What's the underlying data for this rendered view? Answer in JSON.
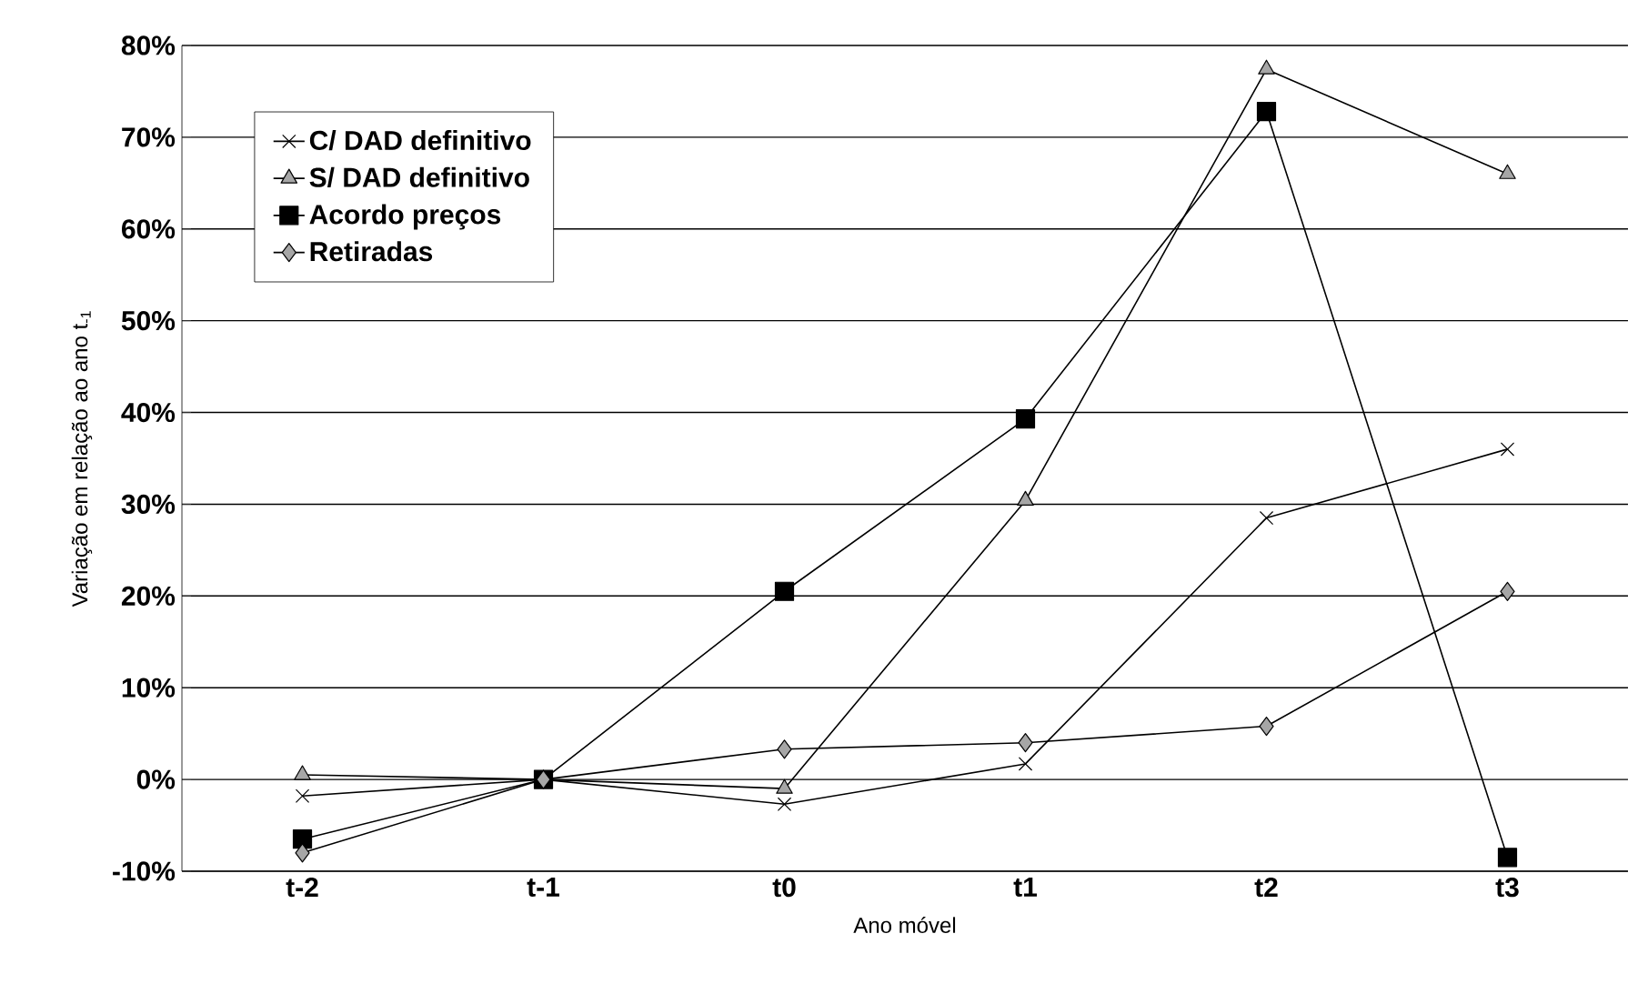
{
  "chart_data": {
    "type": "line",
    "xlabel": "Ano móvel",
    "ylabel": "Variação em relação ao ano t$_{-1}$",
    "categories": [
      "t-2",
      "t-1",
      "t0",
      "t1",
      "t2",
      "t3"
    ],
    "series": [
      {
        "name": "C/ DAD definitivo",
        "color": "#000000",
        "marker": "cross",
        "values": [
          -1.8,
          0,
          -2.7,
          1.7,
          28.5,
          36
        ]
      },
      {
        "name": "S/ DAD definitivo",
        "color": "#a6a6a6",
        "marker": "triangle",
        "values": [
          0.5,
          0,
          -1,
          30.4,
          77.4,
          66
        ]
      },
      {
        "name": "Acordo preços",
        "color": "#000000",
        "marker": "square",
        "values": [
          -6.5,
          0,
          20.5,
          39.3,
          72.8,
          -8.5
        ]
      },
      {
        "name": "Retiradas",
        "color": "#a6a6a6",
        "marker": "diamond",
        "values": [
          -8,
          0,
          3.3,
          4,
          5.8,
          20.5
        ]
      }
    ],
    "ylim": [
      -10,
      80
    ],
    "yticks": [
      {
        "value": -10,
        "label": "-10%"
      },
      {
        "value": 0,
        "label": "0%"
      },
      {
        "value": 10,
        "label": "10%"
      },
      {
        "value": 20,
        "label": "20%"
      },
      {
        "value": 30,
        "label": "30%"
      },
      {
        "value": 40,
        "label": "40%"
      },
      {
        "value": 50,
        "label": "50%"
      },
      {
        "value": 60,
        "label": "60%"
      },
      {
        "value": 70,
        "label": "70%"
      },
      {
        "value": 80,
        "label": "80%"
      }
    ],
    "grid": "y",
    "legend": "top left"
  }
}
